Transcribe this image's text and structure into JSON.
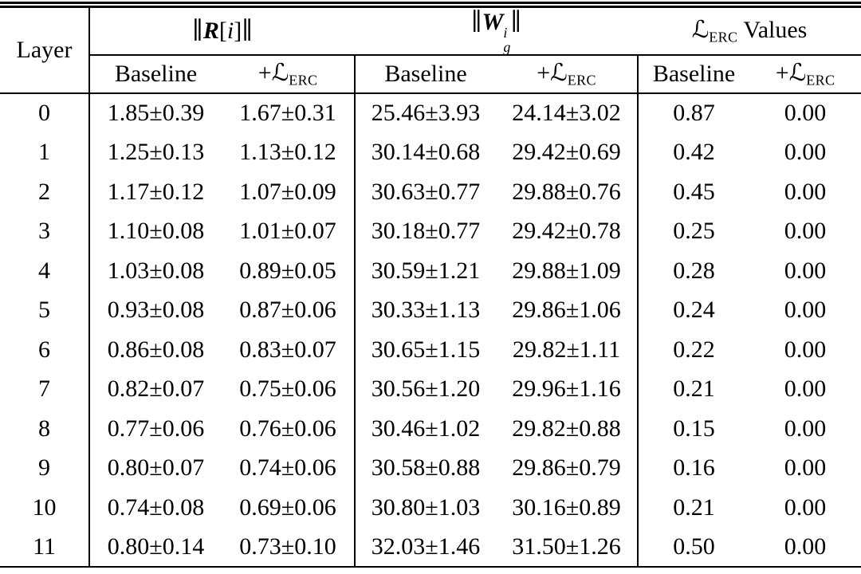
{
  "table": {
    "corner_header": "Layer",
    "group_headers": {
      "r_norm": {
        "open": "∥",
        "symbol": "R",
        "bracket_open": "[",
        "index": "i",
        "bracket_close": "]",
        "close": "∥"
      },
      "w_norm": {
        "open": "∥",
        "symbol": "W",
        "sup": "i",
        "sub": "g",
        "close": "∥"
      },
      "erc_values": {
        "symbol": "ℒ",
        "sub": "ERC",
        "suffix": " Values"
      }
    },
    "subheaders": {
      "baseline": "Baseline",
      "erc_plus": {
        "prefix": "+",
        "symbol": "ℒ",
        "sub": "ERC"
      }
    },
    "rows": [
      {
        "layer": "0",
        "r_baseline": "1.85±0.39",
        "r_erc": "1.67±0.31",
        "w_baseline": "25.46±3.93",
        "w_erc": "24.14±3.02",
        "l_baseline": "0.87",
        "l_erc": "0.00"
      },
      {
        "layer": "1",
        "r_baseline": "1.25±0.13",
        "r_erc": "1.13±0.12",
        "w_baseline": "30.14±0.68",
        "w_erc": "29.42±0.69",
        "l_baseline": "0.42",
        "l_erc": "0.00"
      },
      {
        "layer": "2",
        "r_baseline": "1.17±0.12",
        "r_erc": "1.07±0.09",
        "w_baseline": "30.63±0.77",
        "w_erc": "29.88±0.76",
        "l_baseline": "0.45",
        "l_erc": "0.00"
      },
      {
        "layer": "3",
        "r_baseline": "1.10±0.08",
        "r_erc": "1.01±0.07",
        "w_baseline": "30.18±0.77",
        "w_erc": "29.42±0.78",
        "l_baseline": "0.25",
        "l_erc": "0.00"
      },
      {
        "layer": "4",
        "r_baseline": "1.03±0.08",
        "r_erc": "0.89±0.05",
        "w_baseline": "30.59±1.21",
        "w_erc": "29.88±1.09",
        "l_baseline": "0.28",
        "l_erc": "0.00"
      },
      {
        "layer": "5",
        "r_baseline": "0.93±0.08",
        "r_erc": "0.87±0.06",
        "w_baseline": "30.33±1.13",
        "w_erc": "29.86±1.06",
        "l_baseline": "0.24",
        "l_erc": "0.00"
      },
      {
        "layer": "6",
        "r_baseline": "0.86±0.08",
        "r_erc": "0.83±0.07",
        "w_baseline": "30.65±1.15",
        "w_erc": "29.82±1.11",
        "l_baseline": "0.22",
        "l_erc": "0.00"
      },
      {
        "layer": "7",
        "r_baseline": "0.82±0.07",
        "r_erc": "0.75±0.06",
        "w_baseline": "30.56±1.20",
        "w_erc": "29.96±1.16",
        "l_baseline": "0.21",
        "l_erc": "0.00"
      },
      {
        "layer": "8",
        "r_baseline": "0.77±0.06",
        "r_erc": "0.76±0.06",
        "w_baseline": "30.46±1.02",
        "w_erc": "29.82±0.88",
        "l_baseline": "0.15",
        "l_erc": "0.00"
      },
      {
        "layer": "9",
        "r_baseline": "0.80±0.07",
        "r_erc": "0.74±0.06",
        "w_baseline": "30.58±0.88",
        "w_erc": "29.86±0.79",
        "l_baseline": "0.16",
        "l_erc": "0.00"
      },
      {
        "layer": "10",
        "r_baseline": "0.74±0.08",
        "r_erc": "0.69±0.06",
        "w_baseline": "30.80±1.03",
        "w_erc": "30.16±0.89",
        "l_baseline": "0.21",
        "l_erc": "0.00"
      },
      {
        "layer": "11",
        "r_baseline": "0.80±0.14",
        "r_erc": "0.73±0.10",
        "w_baseline": "32.03±1.46",
        "w_erc": "31.50±1.26",
        "l_baseline": "0.50",
        "l_erc": "0.00"
      }
    ]
  }
}
